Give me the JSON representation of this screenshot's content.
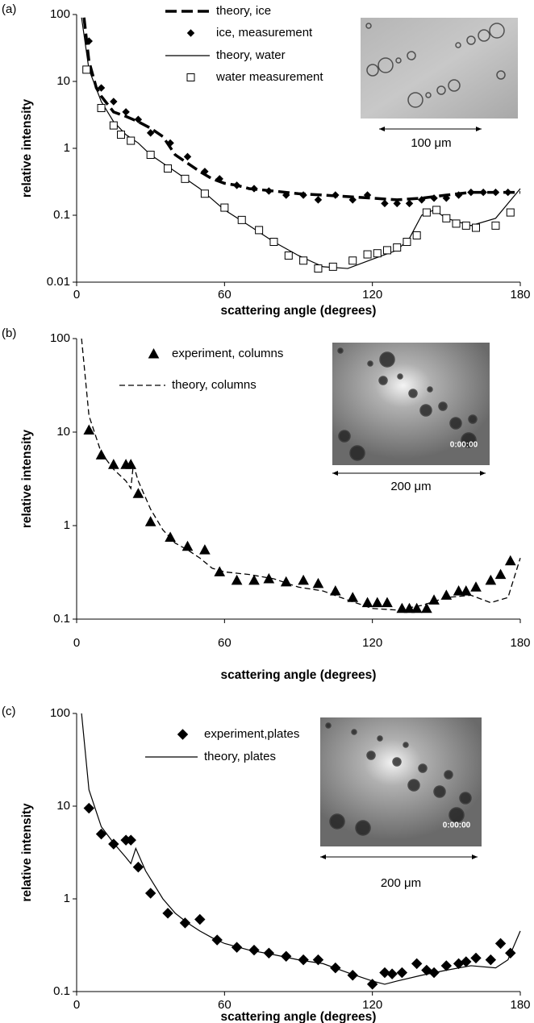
{
  "chart_data": [
    {
      "type": "line",
      "panel_label": "(a)",
      "xlabel": "scattering angle (degrees)",
      "ylabel": "relative intensity",
      "xlim": [
        0,
        180
      ],
      "xticks": [
        0,
        60,
        120,
        180
      ],
      "ylim": [
        0.01,
        100
      ],
      "yticks": [
        100,
        10,
        1,
        0.1,
        0.01
      ],
      "log_y": true,
      "inset_caption": "100 μm",
      "series": [
        {
          "name": "theory, ice",
          "color": "#000000",
          "line_style": "dashed",
          "line_width": 3.5,
          "x": [
            3,
            5,
            8,
            10,
            15,
            20,
            25,
            30,
            35,
            40,
            45,
            50,
            55,
            60,
            65,
            70,
            80,
            90,
            100,
            110,
            120,
            130,
            140,
            150,
            160,
            170,
            180
          ],
          "values": [
            90,
            20,
            8,
            6,
            3.5,
            3,
            2.5,
            2,
            1.5,
            0.8,
            0.6,
            0.45,
            0.35,
            0.3,
            0.28,
            0.25,
            0.23,
            0.21,
            0.2,
            0.19,
            0.18,
            0.17,
            0.18,
            0.2,
            0.22,
            0.22,
            0.22
          ]
        },
        {
          "name": "ice, measurement",
          "color": "#000000",
          "marker": "diamond",
          "x": [
            5,
            10,
            15,
            20,
            25,
            30,
            38,
            45,
            52,
            58,
            65,
            72,
            78,
            85,
            92,
            98,
            105,
            112,
            118,
            125,
            130,
            135,
            140,
            145,
            150,
            155,
            160,
            165,
            170,
            175
          ],
          "values": [
            40,
            8,
            5,
            3.5,
            2.7,
            1.7,
            1.2,
            0.75,
            0.45,
            0.35,
            0.28,
            0.25,
            0.23,
            0.2,
            0.2,
            0.17,
            0.2,
            0.17,
            0.2,
            0.15,
            0.15,
            0.15,
            0.17,
            0.18,
            0.18,
            0.2,
            0.22,
            0.22,
            0.22,
            0.22
          ]
        },
        {
          "name": "theory, water",
          "color": "#000000",
          "line_style": "solid",
          "line_width": 1.2,
          "x": [
            2,
            5,
            10,
            15,
            20,
            25,
            30,
            40,
            50,
            60,
            70,
            80,
            90,
            100,
            110,
            120,
            130,
            135,
            140,
            145,
            150,
            160,
            170,
            180
          ],
          "values": [
            90,
            15,
            5,
            2.5,
            1.6,
            1.2,
            0.8,
            0.45,
            0.25,
            0.12,
            0.07,
            0.04,
            0.025,
            0.017,
            0.016,
            0.022,
            0.03,
            0.045,
            0.1,
            0.12,
            0.09,
            0.07,
            0.09,
            0.25
          ]
        },
        {
          "name": "water measurement",
          "color": "#000000",
          "marker": "square-open",
          "x": [
            4,
            10,
            15,
            18,
            22,
            30,
            37,
            44,
            52,
            60,
            67,
            74,
            80,
            86,
            92,
            98,
            104,
            112,
            118,
            122,
            126,
            130,
            134,
            138,
            142,
            146,
            150,
            154,
            158,
            162,
            170,
            176
          ],
          "values": [
            15,
            4,
            2.2,
            1.6,
            1.3,
            0.8,
            0.5,
            0.35,
            0.21,
            0.13,
            0.085,
            0.06,
            0.04,
            0.025,
            0.021,
            0.016,
            0.017,
            0.021,
            0.026,
            0.027,
            0.03,
            0.033,
            0.04,
            0.05,
            0.11,
            0.12,
            0.09,
            0.075,
            0.07,
            0.065,
            0.07,
            0.11
          ]
        }
      ]
    },
    {
      "type": "line",
      "panel_label": "(b)",
      "xlabel": "scattering angle (degrees)",
      "ylabel": "relative intensity",
      "xlim": [
        0,
        180
      ],
      "xticks": [
        0,
        60,
        120,
        180
      ],
      "ylim": [
        0.1,
        100
      ],
      "yticks": [
        100,
        10,
        1,
        0.1
      ],
      "log_y": true,
      "inset_caption": "200 μm",
      "inset_timestamp": "0:00:00",
      "series": [
        {
          "name": "experiment, columns",
          "color": "#000000",
          "marker": "triangle",
          "x": [
            5,
            10,
            15,
            20,
            22,
            25,
            30,
            38,
            45,
            52,
            58,
            65,
            72,
            78,
            85,
            92,
            98,
            105,
            112,
            118,
            122,
            126,
            132,
            135,
            138,
            142,
            145,
            150,
            155,
            158,
            162,
            168,
            172,
            176
          ],
          "values": [
            10.5,
            5.7,
            4.5,
            4.5,
            4.5,
            2.2,
            1.1,
            0.75,
            0.6,
            0.55,
            0.32,
            0.26,
            0.26,
            0.27,
            0.25,
            0.26,
            0.24,
            0.2,
            0.17,
            0.15,
            0.15,
            0.15,
            0.13,
            0.13,
            0.13,
            0.13,
            0.16,
            0.18,
            0.2,
            0.2,
            0.22,
            0.26,
            0.3,
            0.42
          ]
        },
        {
          "name": "theory, columns",
          "color": "#000000",
          "line_style": "dashed",
          "line_width": 1.3,
          "x": [
            2,
            5,
            10,
            15,
            20,
            22,
            23,
            25,
            30,
            35,
            40,
            45,
            50,
            55,
            60,
            70,
            80,
            90,
            100,
            110,
            120,
            130,
            140,
            150,
            160,
            168,
            175,
            180
          ],
          "values": [
            100,
            15,
            6,
            4,
            3,
            2.5,
            4.5,
            3,
            1.5,
            0.9,
            0.65,
            0.55,
            0.45,
            0.35,
            0.32,
            0.3,
            0.27,
            0.22,
            0.2,
            0.16,
            0.13,
            0.125,
            0.14,
            0.17,
            0.18,
            0.15,
            0.17,
            0.45
          ]
        }
      ]
    },
    {
      "type": "line",
      "panel_label": "(c)",
      "xlabel": "scattering angle (degrees)",
      "ylabel": "relative intensity",
      "xlim": [
        0,
        180
      ],
      "xticks": [
        0,
        60,
        120,
        180
      ],
      "ylim": [
        0.1,
        100
      ],
      "yticks": [
        100,
        10,
        1,
        0.1
      ],
      "log_y": true,
      "inset_caption": "200 μm",
      "inset_timestamp": "0:00:00",
      "series": [
        {
          "name": "experiment,plates",
          "color": "#000000",
          "marker": "diamond-large",
          "x": [
            5,
            10,
            15,
            20,
            22,
            25,
            30,
            37,
            44,
            50,
            57,
            65,
            72,
            78,
            85,
            92,
            98,
            105,
            112,
            120,
            125,
            128,
            132,
            138,
            142,
            145,
            150,
            155,
            158,
            162,
            168,
            172,
            176
          ],
          "values": [
            9.5,
            5,
            3.9,
            4.3,
            4.3,
            2.2,
            1.15,
            0.7,
            0.55,
            0.6,
            0.36,
            0.3,
            0.28,
            0.26,
            0.24,
            0.22,
            0.22,
            0.18,
            0.15,
            0.12,
            0.16,
            0.155,
            0.16,
            0.2,
            0.17,
            0.16,
            0.19,
            0.2,
            0.21,
            0.23,
            0.22,
            0.33,
            0.26
          ]
        },
        {
          "name": "theory, plates",
          "color": "#000000",
          "line_style": "solid",
          "line_width": 1.2,
          "x": [
            2,
            5,
            10,
            15,
            20,
            22,
            24,
            28,
            35,
            40,
            45,
            50,
            55,
            60,
            70,
            80,
            90,
            100,
            110,
            120,
            125,
            130,
            140,
            150,
            160,
            170,
            175,
            180
          ],
          "values": [
            100,
            15,
            6,
            4,
            2.8,
            2.4,
            3.5,
            2,
            1,
            0.7,
            0.55,
            0.45,
            0.38,
            0.33,
            0.28,
            0.25,
            0.22,
            0.2,
            0.16,
            0.13,
            0.12,
            0.13,
            0.15,
            0.17,
            0.19,
            0.18,
            0.22,
            0.45
          ]
        }
      ]
    }
  ]
}
